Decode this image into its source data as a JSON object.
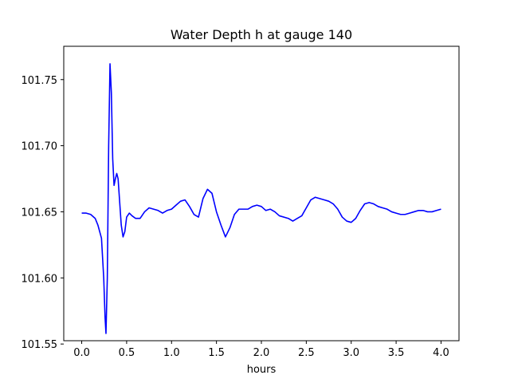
{
  "chart_data": {
    "type": "line",
    "title": "Water Depth h at gauge 140",
    "xlabel": "hours",
    "ylabel": "",
    "xlim": [
      -0.2,
      4.2
    ],
    "ylim": [
      101.5525,
      101.7752
    ],
    "x_ticks": [
      0.0,
      0.5,
      1.0,
      1.5,
      2.0,
      2.5,
      3.0,
      3.5,
      4.0
    ],
    "x_tick_labels": [
      "0.0",
      "0.5",
      "1.0",
      "1.5",
      "2.0",
      "2.5",
      "3.0",
      "3.5",
      "4.0"
    ],
    "y_ticks": [
      101.55,
      101.6,
      101.65,
      101.7,
      101.75
    ],
    "y_tick_labels": [
      "101.55",
      "101.60",
      "101.65",
      "101.70",
      "101.75"
    ],
    "grid": false,
    "legend": "none",
    "series": [
      {
        "color": "#0000ff",
        "x": [
          0.0,
          0.05,
          0.1,
          0.15,
          0.18,
          0.22,
          0.245,
          0.26,
          0.27,
          0.285,
          0.3,
          0.315,
          0.33,
          0.345,
          0.36,
          0.375,
          0.39,
          0.405,
          0.42,
          0.44,
          0.46,
          0.48,
          0.5,
          0.53,
          0.56,
          0.6,
          0.65,
          0.7,
          0.75,
          0.8,
          0.85,
          0.9,
          0.95,
          1.0,
          1.05,
          1.1,
          1.15,
          1.2,
          1.25,
          1.3,
          1.35,
          1.4,
          1.45,
          1.5,
          1.55,
          1.6,
          1.65,
          1.7,
          1.75,
          1.8,
          1.85,
          1.9,
          1.95,
          2.0,
          2.05,
          2.1,
          2.15,
          2.2,
          2.3,
          2.35,
          2.4,
          2.45,
          2.5,
          2.55,
          2.6,
          2.65,
          2.7,
          2.75,
          2.8,
          2.85,
          2.9,
          2.95,
          3.0,
          3.05,
          3.1,
          3.15,
          3.2,
          3.25,
          3.3,
          3.35,
          3.4,
          3.45,
          3.5,
          3.55,
          3.6,
          3.65,
          3.7,
          3.75,
          3.8,
          3.85,
          3.9,
          3.95,
          4.0
        ],
        "y": [
          101.649,
          101.649,
          101.648,
          101.645,
          101.64,
          101.63,
          101.6,
          101.57,
          101.558,
          101.6,
          101.7,
          101.762,
          101.74,
          101.69,
          101.67,
          101.675,
          101.679,
          101.675,
          101.66,
          101.64,
          101.631,
          101.635,
          101.646,
          101.649,
          101.647,
          101.645,
          101.645,
          101.65,
          101.653,
          101.652,
          101.651,
          101.649,
          101.651,
          101.652,
          101.655,
          101.658,
          101.659,
          101.654,
          101.648,
          101.646,
          101.66,
          101.667,
          101.664,
          101.65,
          101.64,
          101.631,
          101.638,
          101.648,
          101.652,
          101.652,
          101.652,
          101.654,
          101.655,
          101.654,
          101.651,
          101.652,
          101.65,
          101.647,
          101.645,
          101.643,
          101.645,
          101.647,
          101.653,
          101.659,
          101.661,
          101.66,
          101.659,
          101.658,
          101.656,
          101.652,
          101.646,
          101.643,
          101.642,
          101.645,
          101.651,
          101.656,
          101.657,
          101.656,
          101.654,
          101.653,
          101.652,
          101.65,
          101.649,
          101.648,
          101.648,
          101.649,
          101.65,
          101.651,
          101.651,
          101.65,
          101.65,
          101.651,
          101.652
        ]
      }
    ]
  }
}
